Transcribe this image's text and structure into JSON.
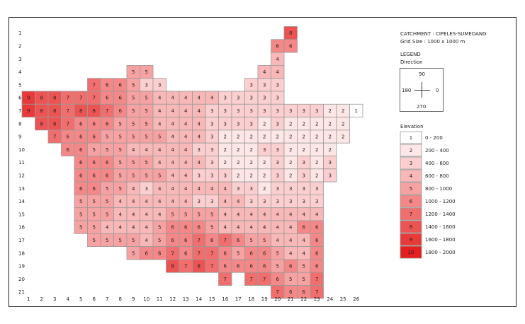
{
  "chart_data": {
    "type": "heatmap",
    "row_labels": [
      "1",
      "2",
      "3",
      "4",
      "5",
      "6",
      "7",
      "8",
      "9",
      "10",
      "11",
      "12",
      "13",
      "14",
      "15",
      "16",
      "17",
      "18",
      "19",
      "20",
      "21"
    ],
    "col_labels": [
      "1",
      "2",
      "3",
      "4",
      "5",
      "6",
      "7",
      "8",
      "9",
      "10",
      "11",
      "12",
      "13",
      "14",
      "15",
      "16",
      "17",
      "18",
      "19",
      "20",
      "21",
      "22",
      "23",
      "24",
      "25",
      "26"
    ],
    "grid": [
      [
        null,
        null,
        null,
        null,
        null,
        null,
        null,
        null,
        null,
        null,
        null,
        null,
        null,
        null,
        null,
        null,
        null,
        null,
        null,
        null,
        8,
        null,
        null,
        null,
        null,
        null
      ],
      [
        null,
        null,
        null,
        null,
        null,
        null,
        null,
        null,
        null,
        null,
        null,
        null,
        null,
        null,
        null,
        null,
        null,
        null,
        null,
        6,
        6,
        null,
        null,
        null,
        null,
        null
      ],
      [
        null,
        null,
        null,
        null,
        null,
        null,
        null,
        null,
        null,
        null,
        null,
        null,
        null,
        null,
        null,
        null,
        null,
        null,
        null,
        4,
        null,
        null,
        null,
        null,
        null,
        null
      ],
      [
        null,
        null,
        null,
        null,
        null,
        null,
        null,
        null,
        5,
        5,
        null,
        null,
        null,
        null,
        null,
        null,
        null,
        null,
        4,
        4,
        null,
        null,
        null,
        null,
        null,
        null
      ],
      [
        null,
        null,
        null,
        null,
        null,
        7,
        6,
        6,
        5,
        3,
        3,
        null,
        null,
        null,
        null,
        null,
        null,
        3,
        3,
        3,
        null,
        null,
        null,
        null,
        null,
        null
      ],
      [
        9,
        8,
        8,
        7,
        7,
        7,
        6,
        6,
        5,
        5,
        4,
        4,
        4,
        4,
        4,
        3,
        3,
        3,
        3,
        3,
        null,
        null,
        null,
        null,
        null,
        null
      ],
      [
        9,
        8,
        8,
        7,
        8,
        8,
        7,
        6,
        5,
        5,
        4,
        4,
        4,
        4,
        3,
        3,
        3,
        3,
        3,
        3,
        3,
        3,
        3,
        2,
        2,
        1
      ],
      [
        null,
        8,
        8,
        7,
        6,
        6,
        6,
        5,
        5,
        5,
        4,
        4,
        4,
        4,
        3,
        3,
        3,
        3,
        2,
        3,
        2,
        2,
        2,
        2,
        2,
        null
      ],
      [
        null,
        null,
        7,
        6,
        6,
        6,
        5,
        5,
        5,
        5,
        5,
        4,
        4,
        4,
        3,
        2,
        2,
        2,
        2,
        2,
        2,
        2,
        2,
        2,
        2,
        null
      ],
      [
        null,
        null,
        null,
        6,
        6,
        5,
        5,
        5,
        4,
        4,
        4,
        4,
        4,
        3,
        3,
        2,
        2,
        2,
        3,
        3,
        2,
        2,
        2,
        2,
        null,
        null
      ],
      [
        null,
        null,
        null,
        null,
        6,
        6,
        6,
        5,
        5,
        5,
        4,
        4,
        4,
        4,
        3,
        2,
        2,
        2,
        2,
        3,
        2,
        3,
        2,
        3,
        null,
        null
      ],
      [
        null,
        null,
        null,
        null,
        6,
        6,
        6,
        5,
        5,
        5,
        5,
        4,
        4,
        3,
        3,
        3,
        2,
        2,
        2,
        3,
        2,
        3,
        2,
        3,
        null,
        null
      ],
      [
        null,
        null,
        null,
        null,
        6,
        6,
        5,
        5,
        4,
        3,
        4,
        4,
        4,
        4,
        4,
        4,
        3,
        3,
        2,
        3,
        3,
        3,
        3,
        null,
        null,
        null
      ],
      [
        null,
        null,
        null,
        null,
        5,
        5,
        5,
        4,
        4,
        4,
        4,
        4,
        4,
        3,
        3,
        4,
        4,
        3,
        3,
        3,
        3,
        3,
        3,
        null,
        null,
        null
      ],
      [
        null,
        null,
        null,
        null,
        5,
        5,
        5,
        4,
        4,
        4,
        4,
        5,
        5,
        5,
        5,
        4,
        4,
        4,
        4,
        4,
        4,
        4,
        4,
        null,
        null,
        null
      ],
      [
        null,
        null,
        null,
        null,
        5,
        5,
        4,
        4,
        4,
        4,
        5,
        6,
        6,
        6,
        5,
        4,
        4,
        4,
        4,
        4,
        4,
        6,
        6,
        null,
        null,
        null
      ],
      [
        null,
        null,
        null,
        null,
        null,
        5,
        5,
        5,
        5,
        4,
        5,
        6,
        6,
        7,
        6,
        7,
        6,
        5,
        5,
        4,
        4,
        4,
        6,
        null,
        null,
        null
      ],
      [
        null,
        null,
        null,
        null,
        null,
        null,
        null,
        null,
        5,
        6,
        6,
        7,
        6,
        7,
        7,
        6,
        5,
        6,
        6,
        5,
        4,
        4,
        6,
        null,
        null,
        null
      ],
      [
        null,
        null,
        null,
        null,
        null,
        null,
        null,
        null,
        null,
        null,
        null,
        8,
        7,
        8,
        7,
        6,
        6,
        6,
        6,
        5,
        6,
        5,
        6,
        null,
        null,
        null
      ],
      [
        null,
        null,
        null,
        null,
        null,
        null,
        null,
        null,
        null,
        null,
        null,
        null,
        null,
        null,
        null,
        7,
        null,
        7,
        7,
        6,
        5,
        5,
        7,
        null,
        null,
        null
      ],
      [
        null,
        null,
        null,
        null,
        null,
        null,
        null,
        null,
        null,
        null,
        null,
        null,
        null,
        null,
        null,
        null,
        null,
        null,
        null,
        7,
        6,
        6,
        7,
        null,
        null,
        null
      ]
    ],
    "legend": {
      "title": "Elevation",
      "position": "right",
      "classes": [
        {
          "value": 1,
          "range": "0 - 200",
          "color": "#ffffff"
        },
        {
          "value": 2,
          "range": "200 - 400",
          "color": "#fde6e6"
        },
        {
          "value": 3,
          "range": "400 - 600",
          "color": "#fbcfcf"
        },
        {
          "value": 4,
          "range": "600 - 800",
          "color": "#f9b8b8"
        },
        {
          "value": 5,
          "range": "800 - 1000",
          "color": "#f7a2a2"
        },
        {
          "value": 6,
          "range": "1000 - 1200",
          "color": "#f48888"
        },
        {
          "value": 7,
          "range": "1200 - 1400",
          "color": "#f06e6e"
        },
        {
          "value": 8,
          "range": "1400 - 1600",
          "color": "#ec5454"
        },
        {
          "value": 9,
          "range": "1600 - 1800",
          "color": "#e83a3a"
        },
        {
          "value": 10,
          "range": "1800 - 2000",
          "color": "#e41f1f"
        }
      ]
    },
    "grid_lines": true
  },
  "info": {
    "catchment": "CATCHMENT : CIPELES-SUMEDANG",
    "grid_size": "Grid Size : 1000 x 1000 m",
    "legend_label": "LEGEND",
    "direction_label": "Direction",
    "dir_north": "90",
    "dir_west": "180",
    "dir_east": "0",
    "dir_south": "270"
  },
  "colors": {
    "border": "#9a9a9a",
    "text": "#222222"
  }
}
